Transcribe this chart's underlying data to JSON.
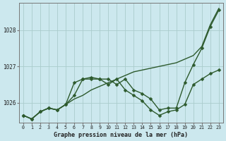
{
  "title": "Graphe pression niveau de la mer (hPa)",
  "bg_color": "#cce8ee",
  "grid_color": "#aacccc",
  "line_color": "#2d5a2d",
  "marker_color": "#2d5a2d",
  "ylim": [
    1025.45,
    1028.75
  ],
  "xlim": [
    -0.5,
    23.5
  ],
  "yticks": [
    1026,
    1027,
    1028
  ],
  "xticks": [
    0,
    1,
    2,
    3,
    4,
    5,
    6,
    7,
    8,
    9,
    10,
    11,
    12,
    13,
    14,
    15,
    16,
    17,
    18,
    19,
    20,
    21,
    22,
    23
  ],
  "series": [
    {
      "x": [
        0,
        1,
        2,
        3,
        4,
        5,
        6,
        7,
        8,
        9,
        10,
        11,
        12,
        13,
        14,
        15,
        16,
        17,
        18,
        19,
        20,
        21,
        22,
        23
      ],
      "y": [
        1025.65,
        1025.55,
        1025.75,
        1025.85,
        1025.8,
        1025.95,
        1026.1,
        1026.2,
        1026.35,
        1026.45,
        1026.55,
        1026.65,
        1026.75,
        1026.85,
        1026.9,
        1026.95,
        1027.0,
        1027.05,
        1027.1,
        1027.2,
        1027.3,
        1027.55,
        1028.15,
        1028.6
      ],
      "has_markers": false,
      "linewidth": 1.0
    },
    {
      "x": [
        0,
        1,
        2,
        3,
        4,
        5,
        6,
        7,
        8,
        9,
        10,
        11,
        12,
        13,
        14,
        15,
        16,
        17,
        18,
        19,
        20,
        21,
        22,
        23
      ],
      "y": [
        1025.65,
        1025.55,
        1025.75,
        1025.85,
        1025.8,
        1025.95,
        1026.55,
        1026.65,
        1026.7,
        1026.65,
        1026.65,
        1026.5,
        1026.65,
        1026.35,
        1026.25,
        1026.1,
        1025.8,
        1025.85,
        1025.85,
        1026.55,
        1027.05,
        1027.5,
        1028.1,
        1028.55
      ],
      "has_markers": true,
      "linewidth": 1.0
    },
    {
      "x": [
        0,
        1,
        2,
        3,
        4,
        5,
        6,
        7,
        8,
        9,
        10,
        11,
        12,
        13,
        14,
        15,
        16,
        17,
        18,
        19,
        20,
        21,
        22,
        23
      ],
      "y": [
        1025.65,
        1025.55,
        1025.75,
        1025.85,
        1025.8,
        1025.95,
        1026.2,
        1026.65,
        1026.65,
        1026.65,
        1026.5,
        1026.65,
        1026.35,
        1026.2,
        1026.05,
        1025.8,
        1025.65,
        1025.75,
        1025.8,
        1025.95,
        1026.5,
        1026.65,
        1026.8,
        1026.9
      ],
      "has_markers": true,
      "linewidth": 1.0
    }
  ]
}
